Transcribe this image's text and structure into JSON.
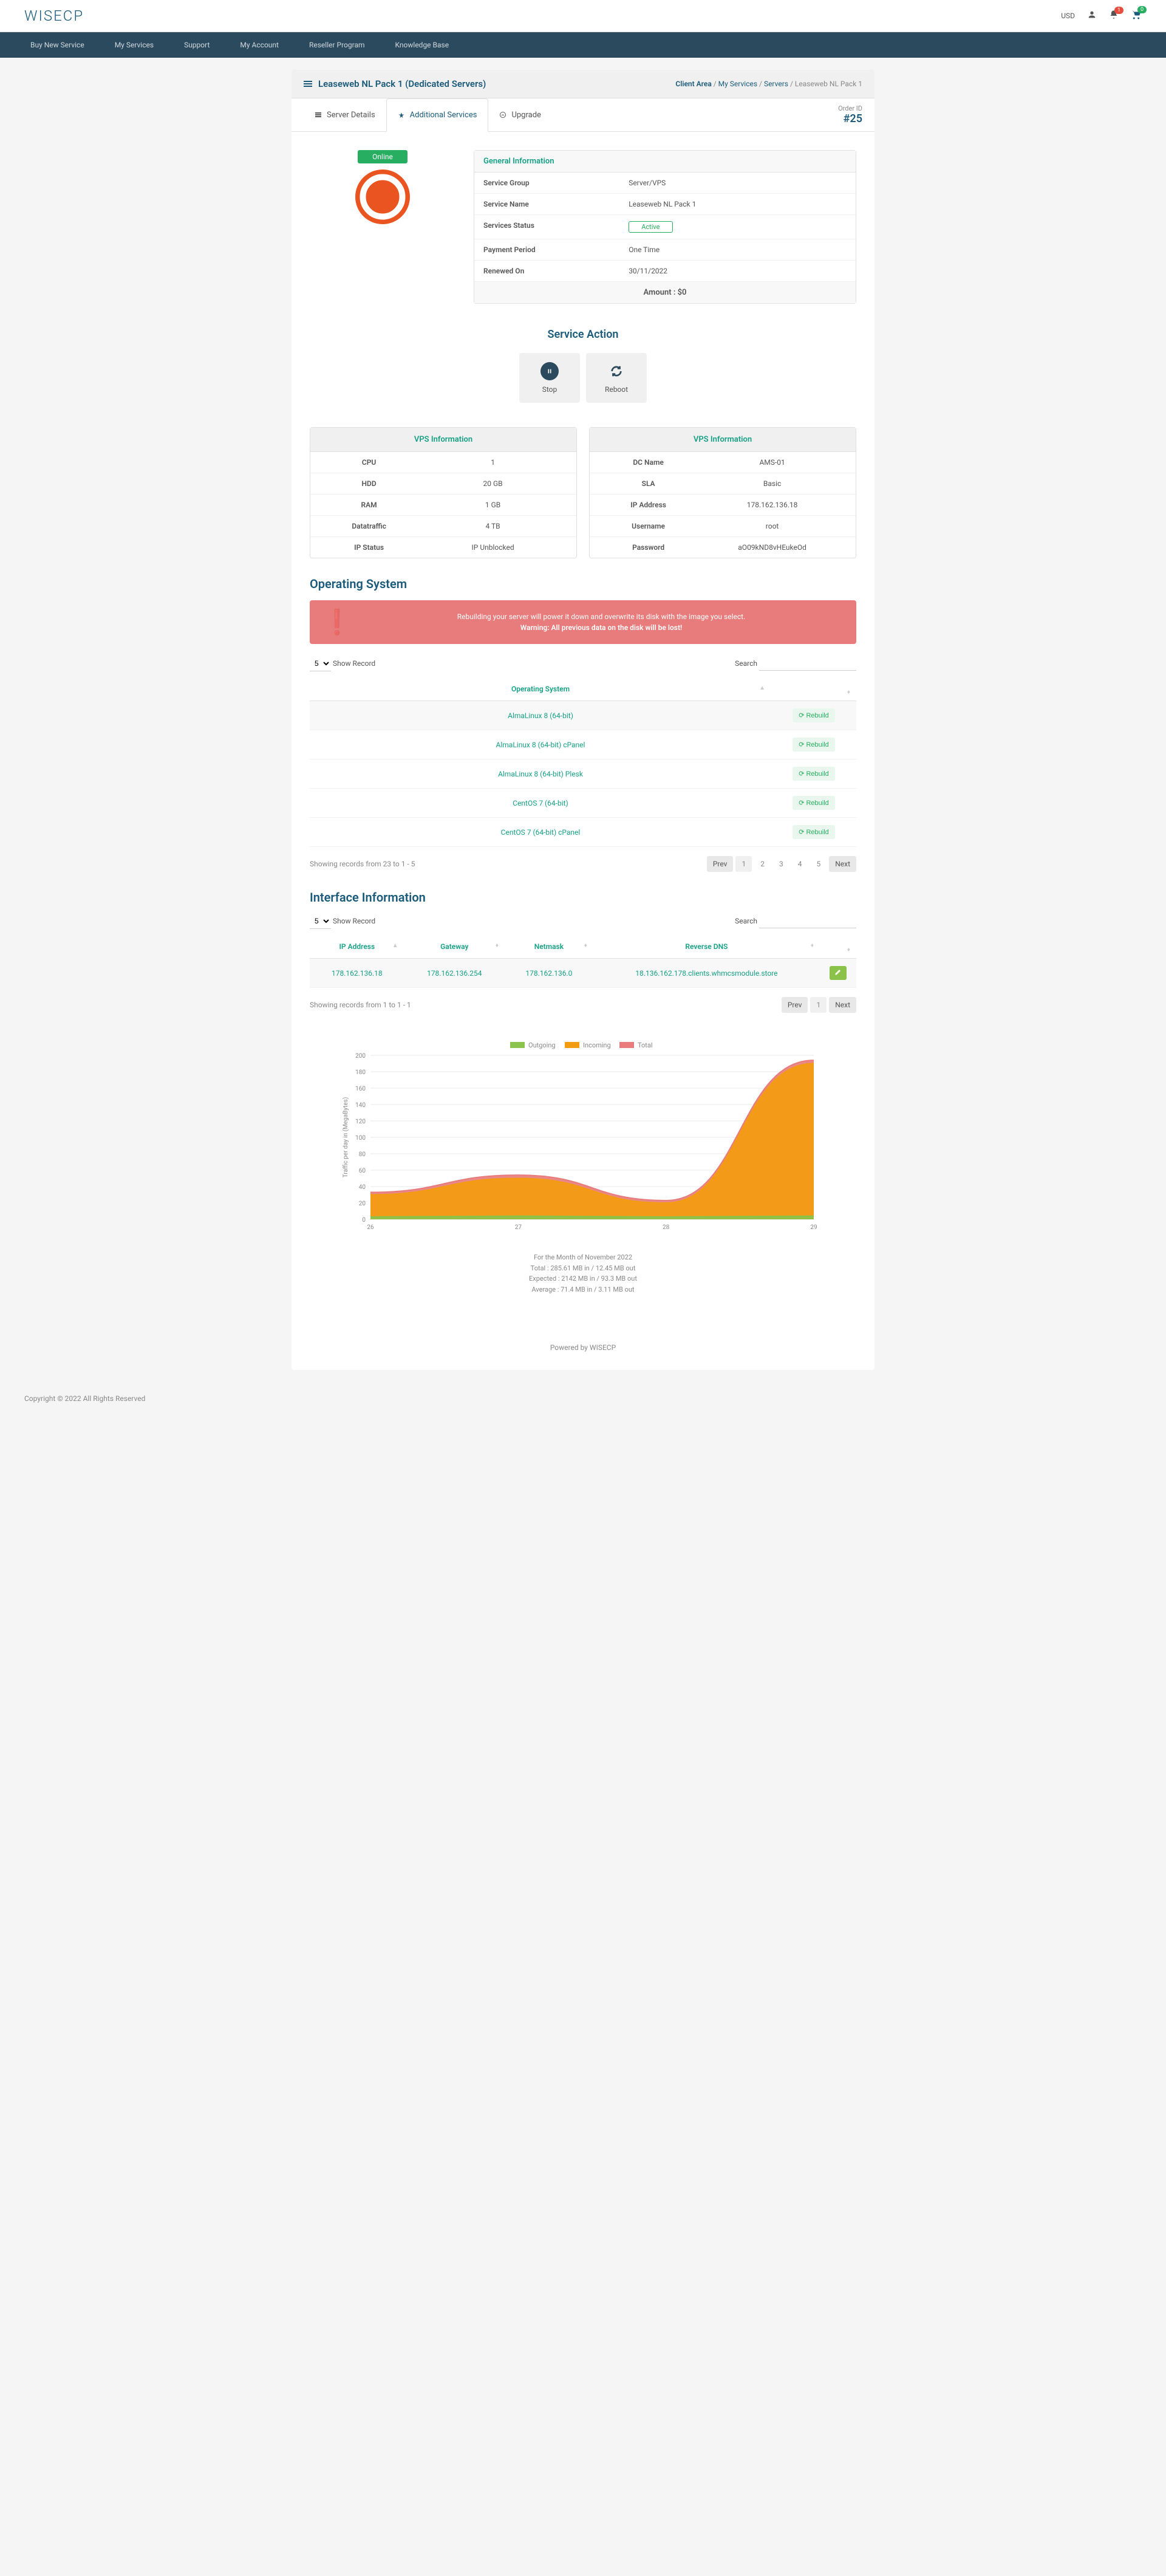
{
  "header": {
    "logo": "WISECP",
    "currency": "USD",
    "notification_count": "1",
    "cart_count": "0"
  },
  "navbar": [
    "Buy New Service",
    "My Services",
    "Support",
    "My Account",
    "Reseller Program",
    "Knowledge Base"
  ],
  "page": {
    "title": "Leaseweb NL Pack 1 (Dedicated Servers)",
    "breadcrumbs": {
      "client_area": "Client Area",
      "my_services": "My Services",
      "servers": "Servers",
      "current": "Leaseweb NL Pack 1"
    }
  },
  "tabs": {
    "server_details": "Server Details",
    "additional_services": "Additional Services",
    "upgrade": "Upgrade"
  },
  "order": {
    "label": "Order ID",
    "value": "#25"
  },
  "status": "Online",
  "general_info": {
    "header": "General Information",
    "rows": {
      "service_group": {
        "label": "Service Group",
        "value": "Server/VPS"
      },
      "service_name": {
        "label": "Service Name",
        "value": "Leaseweb NL Pack 1"
      },
      "services_status": {
        "label": "Services Status",
        "value": "Active"
      },
      "payment_period": {
        "label": "Payment Period",
        "value": "One Time"
      },
      "renewed_on": {
        "label": "Renewed On",
        "value": "30/11/2022"
      }
    },
    "amount": "Amount : $0"
  },
  "service_action": {
    "header": "Service Action",
    "stop": "Stop",
    "reboot": "Reboot"
  },
  "vps_info": {
    "header": "VPS Information",
    "left": [
      {
        "label": "CPU",
        "value": "1"
      },
      {
        "label": "HDD",
        "value": "20 GB"
      },
      {
        "label": "RAM",
        "value": "1 GB"
      },
      {
        "label": "Datatraffic",
        "value": "4 TB"
      },
      {
        "label": "IP Status",
        "value": "IP Unblocked"
      }
    ],
    "right": [
      {
        "label": "DC Name",
        "value": "AMS-01"
      },
      {
        "label": "SLA",
        "value": "Basic"
      },
      {
        "label": "IP Address",
        "value": "178.162.136.18"
      },
      {
        "label": "Username",
        "value": "root"
      },
      {
        "label": "Password",
        "value": "aO09kND8vHEukeOd"
      }
    ]
  },
  "os_section": {
    "header": "Operating System",
    "warning_text": "Rebuilding your server will power it down and overwrite its disk with the image you select.",
    "warning_bold": "Warning: All previous data on the disk will be lost!",
    "show_record": "Show Record",
    "show_count": "5",
    "search_label": "Search",
    "col_os": "Operating System",
    "rebuild_label": "Rebuild",
    "rows": [
      "AlmaLinux 8 (64-bit)",
      "AlmaLinux 8 (64-bit) cPanel",
      "AlmaLinux 8 (64-bit) Plesk",
      "CentOS 7 (64-bit)",
      "CentOS 7 (64-bit) cPanel"
    ],
    "footer_text": "Showing records from 23 to 1 - 5",
    "prev": "Prev",
    "next": "Next",
    "pages": [
      "1",
      "2",
      "3",
      "4",
      "5"
    ]
  },
  "interface_section": {
    "header": "Interface Information",
    "show_record": "Show Record",
    "show_count": "5",
    "search_label": "Search",
    "columns": [
      "IP Address",
      "Gateway",
      "Netmask",
      "Reverse DNS"
    ],
    "row": {
      "ip": "178.162.136.18",
      "gateway": "178.162.136.254",
      "netmask": "178.162.136.0",
      "reverse": "18.136.162.178.clients.whmcsmodule.store"
    },
    "footer_text": "Showing records from 1 to 1 - 1",
    "prev": "Prev",
    "next": "Next",
    "page1": "1"
  },
  "chart": {
    "legend": {
      "outgoing": "Outgoing",
      "incoming": "Incoming",
      "total": "Total"
    },
    "ylabel": "Traffic per day in (MegaBytes)",
    "ylim": [
      0,
      200
    ],
    "ytick_step": 20,
    "xlabels": [
      "26",
      "27",
      "28",
      "29"
    ],
    "colors": {
      "outgoing": "#8bc34a",
      "incoming": "#f39c12",
      "total": "#e87b7b",
      "grid": "#e8e8e8",
      "axis_text": "#888888"
    },
    "series": {
      "outgoing": [
        3,
        4,
        3,
        4
      ],
      "incoming": [
        30,
        50,
        20,
        190
      ],
      "total": [
        33,
        54,
        23,
        194
      ]
    },
    "caption": {
      "month": "For the Month of November 2022",
      "total": "Total : 285.61 MB in / 12.45 MB out",
      "expected": "Expected : 2142 MB in / 93.3 MB out",
      "average": "Average : 71.4 MB in / 3.11 MB out"
    }
  },
  "footer": "Powered by WISECP",
  "copyright": "Copyright © 2022 All Rights Reserved"
}
